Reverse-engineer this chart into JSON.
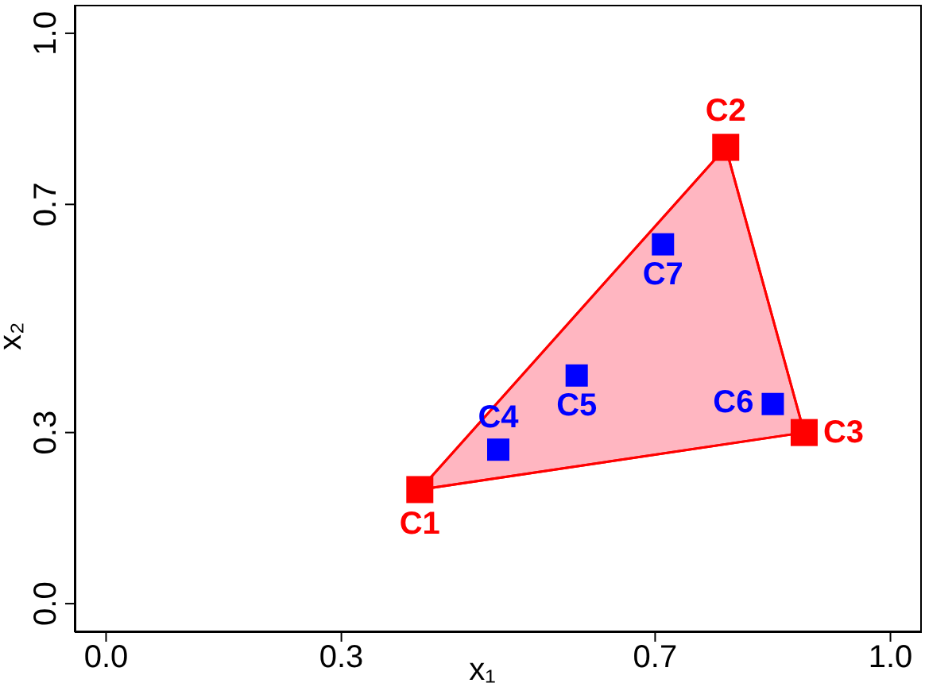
{
  "chart_data": {
    "type": "scatter",
    "xlabel": "x₁",
    "ylabel": "x₂",
    "xlim": [
      -0.04,
      1.04
    ],
    "ylim": [
      -0.05,
      1.05
    ],
    "xticks": [
      {
        "value": 0,
        "label": "0.0"
      },
      {
        "value": 0.3,
        "label": "0.3"
      },
      {
        "value": 0.7,
        "label": "0.7"
      },
      {
        "value": 1,
        "label": "1.0"
      }
    ],
    "yticks": [
      {
        "value": 0,
        "label": "0.0"
      },
      {
        "value": 0.3,
        "label": "0.3"
      },
      {
        "value": 0.7,
        "label": "0.7"
      },
      {
        "value": 1,
        "label": "1.0"
      }
    ],
    "grid": false,
    "legend": false,
    "marker": "square",
    "series": [
      {
        "type": "area",
        "marker": "none",
        "color": "#ffb6c1",
        "x": [
          0.4,
          0.79,
          0.89
        ],
        "values": [
          0.2,
          0.8,
          0.3
        ]
      },
      {
        "color": "#ff0000",
        "x": [
          0.4,
          0.79,
          0.89
        ],
        "values": [
          0.2,
          0.8,
          0.3
        ],
        "value_labels": [
          "C1",
          "C2",
          "C3"
        ]
      },
      {
        "color": "#0000ff",
        "x": [
          0.5,
          0.6,
          0.85,
          0.71
        ],
        "values": [
          0.27,
          0.4,
          0.35,
          0.63
        ],
        "value_labels": [
          "C4",
          "C5",
          "C6",
          "C7"
        ]
      }
    ]
  }
}
